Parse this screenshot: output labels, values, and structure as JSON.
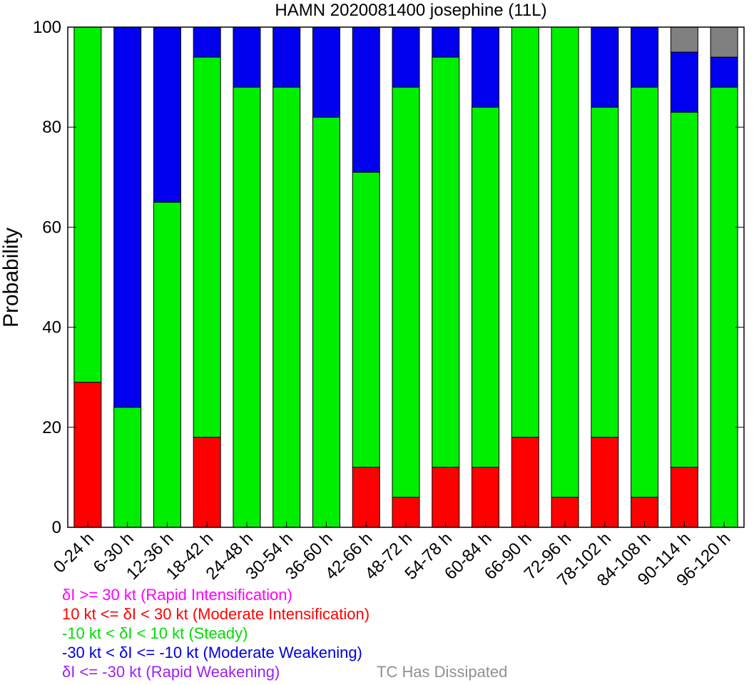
{
  "chart_data": {
    "type": "bar",
    "stacked": true,
    "title": "HAMN 2020081400 josephine (11L)",
    "xlabel": "",
    "ylabel": "Probability",
    "ylim": [
      0,
      100
    ],
    "yticks": [
      0,
      20,
      40,
      60,
      80,
      100
    ],
    "categories": [
      "0-24 h",
      "6-30 h",
      "12-36 h",
      "18-42 h",
      "24-48 h",
      "30-54 h",
      "36-60 h",
      "42-66 h",
      "48-72 h",
      "54-78 h",
      "60-84 h",
      "66-90 h",
      "72-96 h",
      "78-102 h",
      "84-108 h",
      "90-114 h",
      "96-120 h"
    ],
    "series": [
      {
        "color": "#ff00ff",
        "values": [
          0,
          0,
          0,
          0,
          0,
          0,
          0,
          0,
          0,
          0,
          0,
          0,
          0,
          0,
          0,
          0,
          0
        ]
      },
      {
        "color": "#ff0000",
        "values": [
          29,
          0,
          0,
          18,
          0,
          0,
          0,
          12,
          6,
          12,
          12,
          18,
          6,
          18,
          6,
          12,
          0
        ]
      },
      {
        "color": "#00ee00",
        "values": [
          71,
          24,
          65,
          76,
          88,
          88,
          82,
          59,
          82,
          82,
          72,
          82,
          94,
          66,
          82,
          71,
          88
        ]
      },
      {
        "color": "#0000ee",
        "values": [
          0,
          76,
          35,
          6,
          12,
          12,
          18,
          29,
          12,
          6,
          16,
          0,
          0,
          16,
          12,
          12,
          6
        ]
      },
      {
        "color": "#a020f0",
        "values": [
          0,
          0,
          0,
          0,
          0,
          0,
          0,
          0,
          0,
          0,
          0,
          0,
          0,
          0,
          0,
          0,
          0
        ]
      },
      {
        "color": "#808080",
        "values": [
          0,
          0,
          0,
          0,
          0,
          0,
          0,
          0,
          0,
          0,
          0,
          0,
          0,
          0,
          0,
          5,
          6
        ]
      }
    ],
    "legend": [
      {
        "text": "δI >= 30 kt (Rapid Intensification)",
        "color": "#ff00ff"
      },
      {
        "text": "10 kt <= δI < 30 kt (Moderate Intensification)",
        "color": "#ff0000"
      },
      {
        "text": "-10 kt < δI < 10 kt (Steady)",
        "color": "#00dd00"
      },
      {
        "text": "-30 kt < δI <= -10 kt (Moderate Weakening)",
        "color": "#0000dd"
      },
      {
        "text": "δI <= -30 kt (Rapid Weakening)",
        "color": "#a020f0"
      }
    ],
    "legend_extra": {
      "text": "TC Has Dissipated",
      "color": "#909090"
    }
  }
}
